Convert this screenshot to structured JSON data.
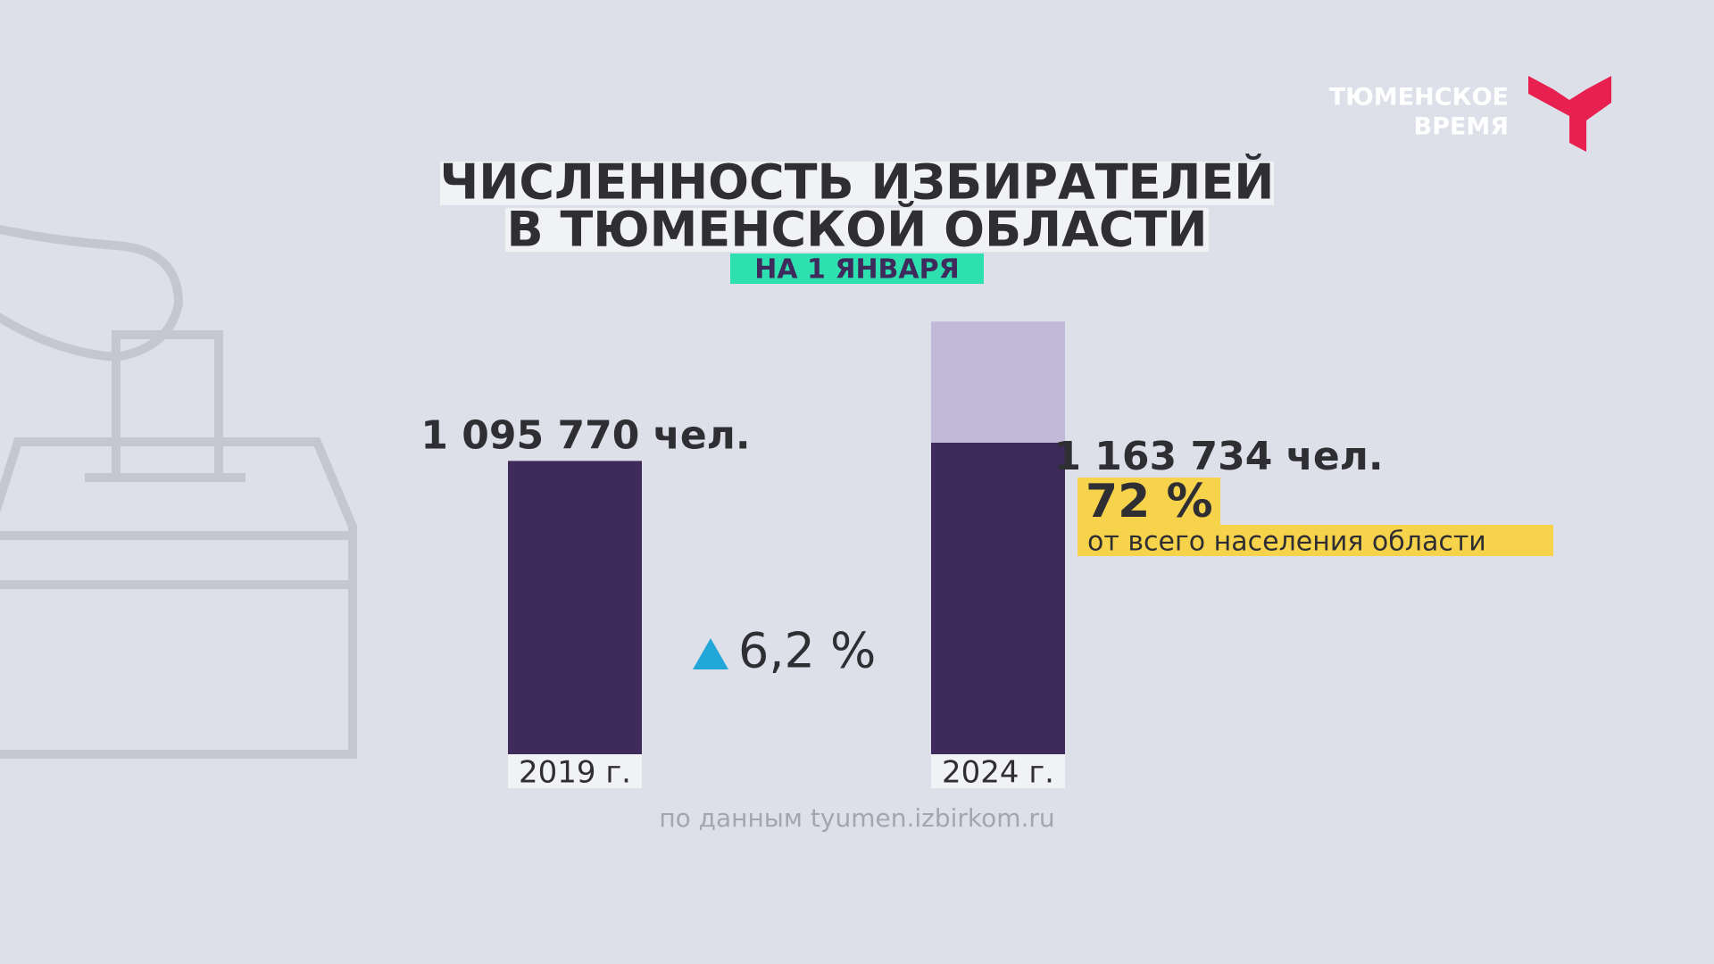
{
  "chart_data": {
    "type": "bar",
    "title_lines": [
      "ЧИСЛЕННОСТЬ ИЗБИРАТЕЛЕЙ",
      "В ТЮМЕНСКОЙ ОБЛАСТИ"
    ],
    "subtitle": "НА 1 ЯНВАРЯ",
    "categories": [
      "2019 г.",
      "2024 г."
    ],
    "values": [
      1095770,
      1163734
    ],
    "value_labels": [
      "1 095 770 чел.",
      "1 163 734 чел."
    ],
    "color": "#3f2a5c",
    "change": "6,2 %",
    "share": {
      "value": 72,
      "label": "72 %"
    },
    "share_color": "#c2b8d8",
    "share_note": "от всего населения области",
    "source": "по данным tyumen.izbirkom.ru"
  },
  "logo": {
    "lines": [
      "ТЮМЕНСКОЕ",
      "ВРЕМЯ"
    ]
  }
}
